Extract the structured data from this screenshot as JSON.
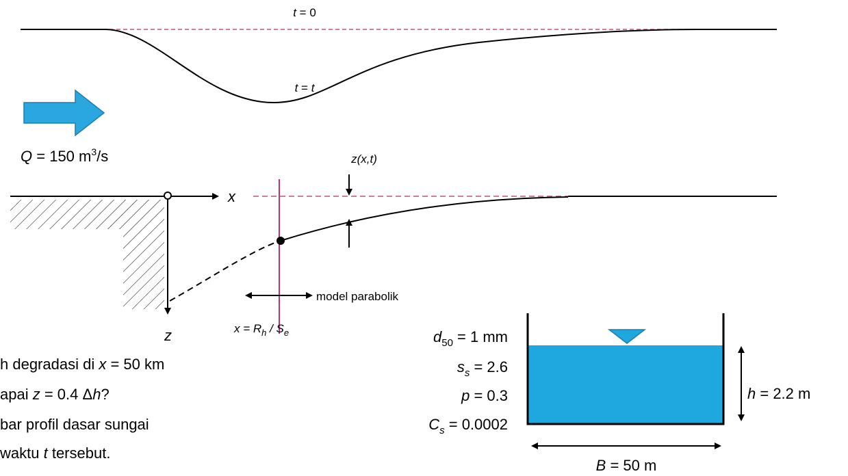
{
  "profile": {
    "t0": {
      "var": "t",
      "rest": "= 0"
    },
    "tt": {
      "var": "t",
      "eq": "=",
      "var2": "t"
    }
  },
  "flow": {
    "var": "Q",
    "value": "= 150 m",
    "sup": "3",
    "unit": "/s"
  },
  "bed": {
    "z_label": "z(x,t)",
    "x_axis": "x",
    "z_axis": "z",
    "model": "model parabolik",
    "x_eq": "x = R",
    "x_sub": "h",
    "x_sep": " / S",
    "x_sub2": "e"
  },
  "params": [
    {
      "var": "d",
      "sub": "50",
      "rest": " = 1 mm"
    },
    {
      "var": "s",
      "sub": "s",
      "rest": " = 2.6"
    },
    {
      "var": "p",
      "rest": " = 0.3"
    },
    {
      "var": "C",
      "sub": "s",
      "rest": " = 0.0002"
    }
  ],
  "channel": {
    "h_var": "h",
    "h_rest": " = 2.2 m",
    "b_var": "B",
    "b_rest": " = 50 m"
  },
  "questions": [
    {
      "a": "h degradasi di ",
      "v": "x",
      "b": " = 50 km"
    },
    {
      "a": "apai ",
      "v": "z",
      "b": " = 0.4 Δ",
      "v2": "h",
      "c": "?"
    },
    {
      "a": "bar profil dasar sungai"
    },
    {
      "a": "waktu ",
      "v": "t",
      "b": " tersebut."
    }
  ]
}
